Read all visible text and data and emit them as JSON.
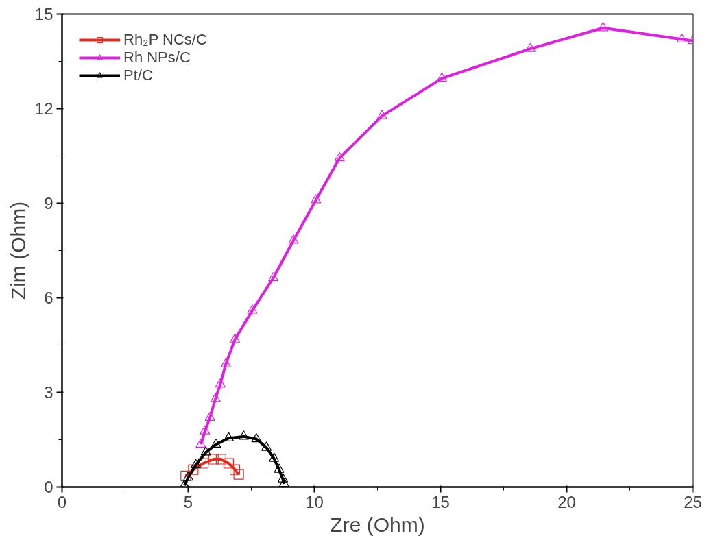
{
  "chart_data": {
    "type": "line",
    "xlabel": "Zre (Ohm)",
    "ylabel": "Zim (Ohm)",
    "xlim": [
      0,
      25
    ],
    "ylim": [
      0,
      15
    ],
    "xticks": [
      0,
      5,
      10,
      15,
      20,
      25
    ],
    "yticks": [
      0,
      3,
      6,
      9,
      12,
      15
    ],
    "grid": false,
    "legend": "top left",
    "line_style": "solid",
    "series": [
      {
        "name": "Rh₂P NCs/C",
        "color": "#e8291c",
        "marker": "square",
        "x": [
          4.9,
          5.2,
          5.6,
          6.0,
          6.3,
          6.6,
          6.85,
          7.0
        ],
        "values": [
          0.35,
          0.55,
          0.75,
          0.88,
          0.88,
          0.75,
          0.55,
          0.4
        ]
      },
      {
        "name": "Rh NPs/C",
        "color": "#e020e0",
        "marker": "triangle",
        "x": [
          5.5,
          5.66,
          5.86,
          6.08,
          6.27,
          6.49,
          6.85,
          7.54,
          8.37,
          9.17,
          10.06,
          11.0,
          12.68,
          15.05,
          18.56,
          21.44,
          24.56,
          25.0
        ],
        "values": [
          1.35,
          1.77,
          2.2,
          2.8,
          3.26,
          3.9,
          4.68,
          5.6,
          6.63,
          7.82,
          9.1,
          10.44,
          11.77,
          12.96,
          13.9,
          14.56,
          14.2,
          14.15
        ]
      },
      {
        "name": "Pt/C",
        "color": "#000000",
        "marker": "triangle",
        "x": [
          4.85,
          5.0,
          5.3,
          5.7,
          6.1,
          6.6,
          7.2,
          7.7,
          8.1,
          8.4,
          8.6,
          8.75,
          8.8
        ],
        "values": [
          0.05,
          0.3,
          0.7,
          1.1,
          1.35,
          1.55,
          1.6,
          1.52,
          1.25,
          0.9,
          0.55,
          0.25,
          0.1
        ]
      }
    ]
  }
}
